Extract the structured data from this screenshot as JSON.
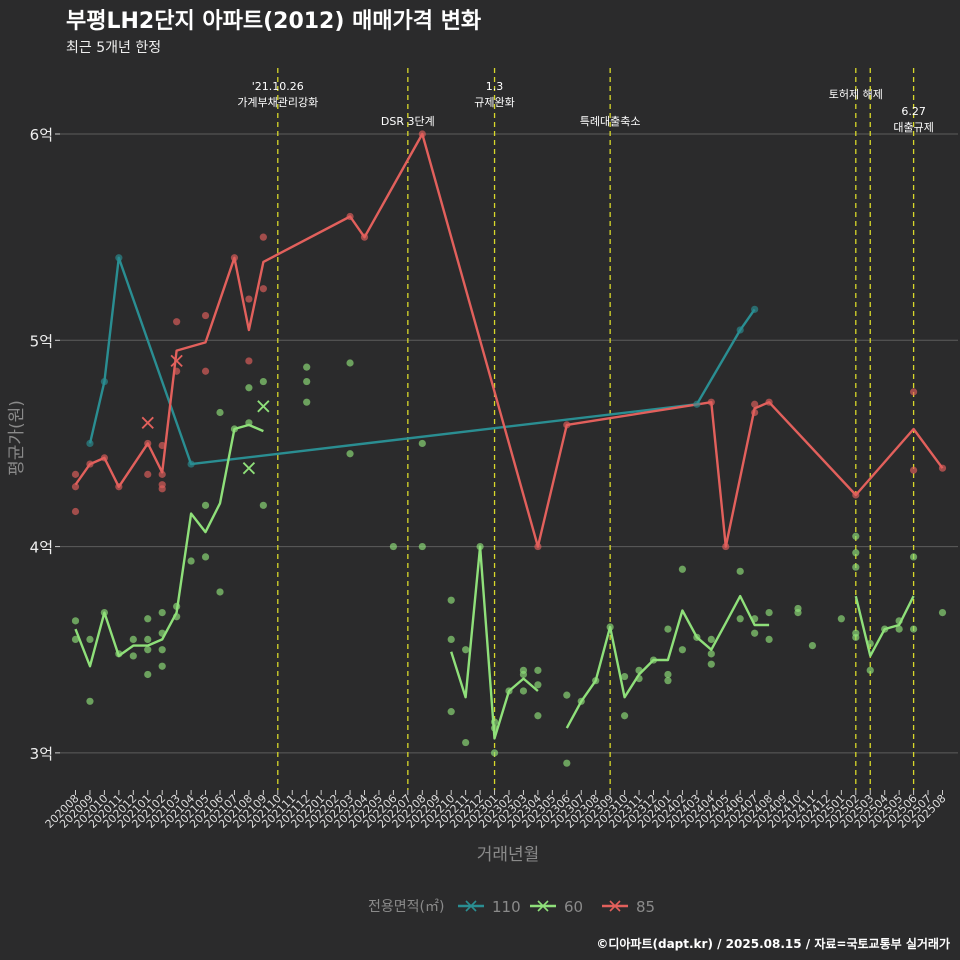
{
  "colors": {
    "background": "#2b2b2c",
    "grid": "#5c5c5c",
    "series_110": "#2a8e92",
    "series_60": "#8fe07a",
    "series_85": "#e2605c",
    "event_line": "#d8d82a",
    "text": "#eeeeee",
    "muted_text": "#8a8a8a"
  },
  "chart_data": {
    "type": "line",
    "title": "부평LH2단지 아파트(2012) 매매가격 변화",
    "subtitle": "최근 5개년 한정",
    "xlabel": "거래년월",
    "ylabel": "평균가(원)",
    "caption": "©디아파트(dapt.kr) / 2025.08.15 / 자료=국토교통부 실거래가",
    "legend_title": "전용면적(㎡)",
    "legend_position": "bottom",
    "grid": true,
    "y_unit": "억",
    "ylim": [
      2.82,
      6.32
    ],
    "y_ticks": [
      3,
      4,
      5,
      6
    ],
    "y_tick_labels": [
      "3억",
      "4억",
      "5억",
      "6억"
    ],
    "x_ticks": [
      "202008",
      "202009",
      "202010",
      "202011",
      "202012",
      "202101",
      "202102",
      "202103",
      "202104",
      "202105",
      "202106",
      "202107",
      "202108",
      "202109",
      "202110",
      "202111",
      "202112",
      "202201",
      "202202",
      "202203",
      "202204",
      "202205",
      "202206",
      "202207",
      "202208",
      "202209",
      "202210",
      "202211",
      "202212",
      "202301",
      "202302",
      "202303",
      "202304",
      "202305",
      "202306",
      "202307",
      "202308",
      "202309",
      "202310",
      "202311",
      "202312",
      "202401",
      "202402",
      "202403",
      "202404",
      "202405",
      "202406",
      "202407",
      "202408",
      "202409",
      "202410",
      "202411",
      "202412",
      "202501",
      "202502",
      "202503",
      "202504",
      "202505",
      "202506",
      "202507",
      "202508"
    ],
    "events": [
      {
        "date": "202110",
        "label": "'21.10.26\n가계부채관리강화"
      },
      {
        "date": "202207",
        "label": "DSR 3단계"
      },
      {
        "date": "202301",
        "label": "1.3\n규제완화"
      },
      {
        "date": "202309",
        "label": "특례대출축소"
      },
      {
        "date": "202502",
        "label": "토허제 해제"
      },
      {
        "date": "202503",
        "label": ""
      },
      {
        "date": "202506",
        "label": "6.27\n대출규제"
      }
    ],
    "series": [
      {
        "name": "110",
        "line": [
          {
            "x": "202009",
            "y": 4.5
          },
          {
            "x": "202010",
            "y": 4.8
          },
          {
            "x": "202011",
            "y": 5.4
          },
          {
            "x": "202104",
            "y": 4.4
          },
          {
            "x": "202403",
            "y": 4.69
          },
          {
            "x": "202406",
            "y": 5.05
          },
          {
            "x": "202407",
            "y": 5.15
          }
        ],
        "points": [
          {
            "x": "202009",
            "y": 4.5
          },
          {
            "x": "202010",
            "y": 4.8
          },
          {
            "x": "202011",
            "y": 5.4
          },
          {
            "x": "202104",
            "y": 4.4
          },
          {
            "x": "202403",
            "y": 4.69
          },
          {
            "x": "202406",
            "y": 5.05
          },
          {
            "x": "202407",
            "y": 5.15
          }
        ],
        "cancelled": []
      },
      {
        "name": "60",
        "line_segments": [
          [
            {
              "x": "202008",
              "y": 3.6
            },
            {
              "x": "202009",
              "y": 3.42
            },
            {
              "x": "202010",
              "y": 3.68
            },
            {
              "x": "202011",
              "y": 3.47
            },
            {
              "x": "202012",
              "y": 3.52
            },
            {
              "x": "202101",
              "y": 3.52
            },
            {
              "x": "202102",
              "y": 3.55
            },
            {
              "x": "202103",
              "y": 3.68
            },
            {
              "x": "202104",
              "y": 4.16
            },
            {
              "x": "202105",
              "y": 4.07
            },
            {
              "x": "202106",
              "y": 4.21
            },
            {
              "x": "202107",
              "y": 4.57
            },
            {
              "x": "202108",
              "y": 4.59
            },
            {
              "x": "202109",
              "y": 4.56
            }
          ],
          [
            {
              "x": "202210",
              "y": 3.49
            },
            {
              "x": "202211",
              "y": 3.27
            },
            {
              "x": "202212",
              "y": 4.0
            },
            {
              "x": "202301",
              "y": 3.07
            },
            {
              "x": "202302",
              "y": 3.3
            },
            {
              "x": "202303",
              "y": 3.36
            },
            {
              "x": "202304",
              "y": 3.3
            }
          ],
          [
            {
              "x": "202306",
              "y": 3.12
            },
            {
              "x": "202307",
              "y": 3.25
            },
            {
              "x": "202308",
              "y": 3.35
            },
            {
              "x": "202309",
              "y": 3.61
            },
            {
              "x": "202310",
              "y": 3.27
            },
            {
              "x": "202311",
              "y": 3.38
            },
            {
              "x": "202312",
              "y": 3.45
            },
            {
              "x": "202401",
              "y": 3.45
            },
            {
              "x": "202402",
              "y": 3.69
            },
            {
              "x": "202403",
              "y": 3.56
            },
            {
              "x": "202404",
              "y": 3.5
            },
            {
              "x": "202405",
              "y": 3.63
            },
            {
              "x": "202406",
              "y": 3.76
            },
            {
              "x": "202407",
              "y": 3.62
            },
            {
              "x": "202408",
              "y": 3.62
            }
          ],
          [
            {
              "x": "202502",
              "y": 3.76
            },
            {
              "x": "202503",
              "y": 3.47
            },
            {
              "x": "202504",
              "y": 3.6
            },
            {
              "x": "202505",
              "y": 3.62
            },
            {
              "x": "202506",
              "y": 3.76
            }
          ]
        ],
        "points": [
          {
            "x": "202008",
            "y": 3.64
          },
          {
            "x": "202008",
            "y": 3.55
          },
          {
            "x": "202009",
            "y": 3.25
          },
          {
            "x": "202009",
            "y": 3.55
          },
          {
            "x": "202010",
            "y": 3.68
          },
          {
            "x": "202011",
            "y": 3.48
          },
          {
            "x": "202012",
            "y": 3.55
          },
          {
            "x": "202012",
            "y": 3.47
          },
          {
            "x": "202101",
            "y": 3.65
          },
          {
            "x": "202101",
            "y": 3.55
          },
          {
            "x": "202101",
            "y": 3.5
          },
          {
            "x": "202101",
            "y": 3.38
          },
          {
            "x": "202102",
            "y": 3.68
          },
          {
            "x": "202102",
            "y": 3.58
          },
          {
            "x": "202102",
            "y": 3.5
          },
          {
            "x": "202102",
            "y": 3.42
          },
          {
            "x": "202103",
            "y": 3.71
          },
          {
            "x": "202103",
            "y": 3.66
          },
          {
            "x": "202104",
            "y": 3.93
          },
          {
            "x": "202105",
            "y": 4.2
          },
          {
            "x": "202105",
            "y": 3.95
          },
          {
            "x": "202106",
            "y": 4.65
          },
          {
            "x": "202106",
            "y": 3.78
          },
          {
            "x": "202107",
            "y": 4.57
          },
          {
            "x": "202108",
            "y": 4.6
          },
          {
            "x": "202108",
            "y": 4.77
          },
          {
            "x": "202109",
            "y": 4.8
          },
          {
            "x": "202109",
            "y": 4.2
          },
          {
            "x": "202112",
            "y": 4.87
          },
          {
            "x": "202112",
            "y": 4.8
          },
          {
            "x": "202112",
            "y": 4.7
          },
          {
            "x": "202203",
            "y": 4.89
          },
          {
            "x": "202203",
            "y": 4.45
          },
          {
            "x": "202206",
            "y": 4.0
          },
          {
            "x": "202208",
            "y": 4.5
          },
          {
            "x": "202208",
            "y": 4.0
          },
          {
            "x": "202210",
            "y": 3.74
          },
          {
            "x": "202210",
            "y": 3.55
          },
          {
            "x": "202210",
            "y": 3.2
          },
          {
            "x": "202211",
            "y": 3.5
          },
          {
            "x": "202211",
            "y": 3.05
          },
          {
            "x": "202212",
            "y": 4.0
          },
          {
            "x": "202301",
            "y": 3.15
          },
          {
            "x": "202301",
            "y": 3.12
          },
          {
            "x": "202301",
            "y": 3.0
          },
          {
            "x": "202302",
            "y": 3.3
          },
          {
            "x": "202303",
            "y": 3.4
          },
          {
            "x": "202303",
            "y": 3.38
          },
          {
            "x": "202303",
            "y": 3.3
          },
          {
            "x": "202304",
            "y": 3.4
          },
          {
            "x": "202304",
            "y": 3.33
          },
          {
            "x": "202304",
            "y": 3.18
          },
          {
            "x": "202306",
            "y": 3.28
          },
          {
            "x": "202306",
            "y": 2.95
          },
          {
            "x": "202307",
            "y": 3.25
          },
          {
            "x": "202308",
            "y": 3.35
          },
          {
            "x": "202309",
            "y": 3.61
          },
          {
            "x": "202310",
            "y": 3.37
          },
          {
            "x": "202310",
            "y": 3.18
          },
          {
            "x": "202311",
            "y": 3.4
          },
          {
            "x": "202311",
            "y": 3.36
          },
          {
            "x": "202312",
            "y": 3.45
          },
          {
            "x": "202401",
            "y": 3.6
          },
          {
            "x": "202401",
            "y": 3.38
          },
          {
            "x": "202401",
            "y": 3.35
          },
          {
            "x": "202402",
            "y": 3.89
          },
          {
            "x": "202402",
            "y": 3.5
          },
          {
            "x": "202403",
            "y": 3.56
          },
          {
            "x": "202404",
            "y": 3.55
          },
          {
            "x": "202404",
            "y": 3.48
          },
          {
            "x": "202404",
            "y": 3.43
          },
          {
            "x": "202406",
            "y": 3.88
          },
          {
            "x": "202406",
            "y": 3.65
          },
          {
            "x": "202407",
            "y": 3.65
          },
          {
            "x": "202407",
            "y": 3.58
          },
          {
            "x": "202408",
            "y": 3.68
          },
          {
            "x": "202408",
            "y": 3.55
          },
          {
            "x": "202410",
            "y": 3.7
          },
          {
            "x": "202410",
            "y": 3.68
          },
          {
            "x": "202411",
            "y": 3.52
          },
          {
            "x": "202501",
            "y": 3.65
          },
          {
            "x": "202502",
            "y": 4.05
          },
          {
            "x": "202502",
            "y": 3.97
          },
          {
            "x": "202502",
            "y": 3.9
          },
          {
            "x": "202502",
            "y": 3.58
          },
          {
            "x": "202502",
            "y": 3.56
          },
          {
            "x": "202503",
            "y": 3.53
          },
          {
            "x": "202503",
            "y": 3.4
          },
          {
            "x": "202504",
            "y": 3.6
          },
          {
            "x": "202505",
            "y": 3.64
          },
          {
            "x": "202505",
            "y": 3.6
          },
          {
            "x": "202506",
            "y": 3.95
          },
          {
            "x": "202506",
            "y": 3.6
          },
          {
            "x": "202508",
            "y": 3.68
          }
        ],
        "cancelled": [
          {
            "x": "202108",
            "y": 4.38
          },
          {
            "x": "202109",
            "y": 4.68
          }
        ]
      },
      {
        "name": "85",
        "line": [
          {
            "x": "202008",
            "y": 4.3
          },
          {
            "x": "202009",
            "y": 4.4
          },
          {
            "x": "202010",
            "y": 4.43
          },
          {
            "x": "202011",
            "y": 4.29
          },
          {
            "x": "202101",
            "y": 4.5
          },
          {
            "x": "202102",
            "y": 4.36
          },
          {
            "x": "202103",
            "y": 4.95
          },
          {
            "x": "202105",
            "y": 4.99
          },
          {
            "x": "202107",
            "y": 5.4
          },
          {
            "x": "202108",
            "y": 5.05
          },
          {
            "x": "202109",
            "y": 5.38
          },
          {
            "x": "202203",
            "y": 5.6
          },
          {
            "x": "202204",
            "y": 5.5
          },
          {
            "x": "202208",
            "y": 6.0
          },
          {
            "x": "202304",
            "y": 4.0
          },
          {
            "x": "202306",
            "y": 4.59
          },
          {
            "x": "202404",
            "y": 4.7
          },
          {
            "x": "202405",
            "y": 4.0
          },
          {
            "x": "202407",
            "y": 4.67
          },
          {
            "x": "202408",
            "y": 4.7
          },
          {
            "x": "202502",
            "y": 4.25
          },
          {
            "x": "202506",
            "y": 4.57
          },
          {
            "x": "202508",
            "y": 4.38
          }
        ],
        "points": [
          {
            "x": "202008",
            "y": 4.35
          },
          {
            "x": "202008",
            "y": 4.29
          },
          {
            "x": "202008",
            "y": 4.17
          },
          {
            "x": "202009",
            "y": 4.4
          },
          {
            "x": "202010",
            "y": 4.43
          },
          {
            "x": "202011",
            "y": 4.29
          },
          {
            "x": "202101",
            "y": 4.5
          },
          {
            "x": "202101",
            "y": 4.35
          },
          {
            "x": "202102",
            "y": 4.49
          },
          {
            "x": "202102",
            "y": 4.35
          },
          {
            "x": "202102",
            "y": 4.3
          },
          {
            "x": "202102",
            "y": 4.28
          },
          {
            "x": "202103",
            "y": 5.09
          },
          {
            "x": "202103",
            "y": 4.85
          },
          {
            "x": "202105",
            "y": 5.12
          },
          {
            "x": "202105",
            "y": 4.85
          },
          {
            "x": "202107",
            "y": 5.4
          },
          {
            "x": "202108",
            "y": 5.2
          },
          {
            "x": "202108",
            "y": 4.9
          },
          {
            "x": "202109",
            "y": 5.5
          },
          {
            "x": "202109",
            "y": 5.25
          },
          {
            "x": "202203",
            "y": 5.6
          },
          {
            "x": "202204",
            "y": 5.5
          },
          {
            "x": "202208",
            "y": 6.0
          },
          {
            "x": "202304",
            "y": 4.0
          },
          {
            "x": "202306",
            "y": 4.59
          },
          {
            "x": "202404",
            "y": 4.7
          },
          {
            "x": "202405",
            "y": 4.0
          },
          {
            "x": "202407",
            "y": 4.69
          },
          {
            "x": "202407",
            "y": 4.65
          },
          {
            "x": "202408",
            "y": 4.7
          },
          {
            "x": "202502",
            "y": 4.25
          },
          {
            "x": "202506",
            "y": 4.75
          },
          {
            "x": "202506",
            "y": 4.37
          },
          {
            "x": "202508",
            "y": 4.38
          }
        ],
        "cancelled": [
          {
            "x": "202101",
            "y": 4.6
          },
          {
            "x": "202103",
            "y": 4.9
          }
        ]
      }
    ]
  }
}
